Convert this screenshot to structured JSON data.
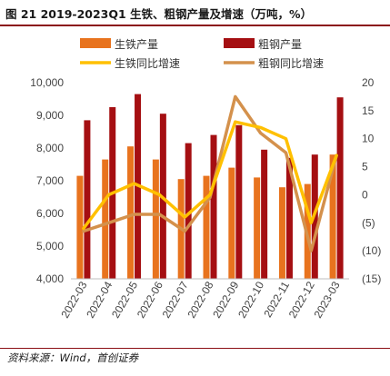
{
  "title": "图 21 2019-2023Q1 生铁、粗钢产量及增速（万吨，%）",
  "source": "资料来源：Wind，首创证券",
  "colors": {
    "pig_iron_bar": "#E8731E",
    "crude_steel_bar": "#A50F12",
    "pig_iron_line": "#FFC000",
    "crude_steel_line": "#D4914C",
    "negative_tick": "#C00000"
  },
  "chart_data": {
    "type": "bar+line",
    "categories": [
      "2022-03",
      "2022-04",
      "2022-05",
      "2022-06",
      "2022-07",
      "2022-08",
      "2022-09",
      "2022-10",
      "2022-11",
      "2022-12",
      "2023-03"
    ],
    "series": [
      {
        "name": "生铁产量",
        "type": "bar",
        "axis": "left",
        "values": [
          7150,
          7650,
          8050,
          7650,
          7050,
          7150,
          7400,
          7100,
          6800,
          6900,
          7800
        ]
      },
      {
        "name": "粗钢产量",
        "type": "bar",
        "axis": "left",
        "values": [
          8850,
          9250,
          9650,
          9050,
          8150,
          8400,
          8700,
          7950,
          7700,
          7800,
          9550
        ]
      },
      {
        "name": "生铁同比增速",
        "type": "line",
        "axis": "right",
        "values": [
          -6,
          0,
          2,
          0,
          -4,
          0,
          13,
          12,
          10,
          -5,
          7
        ]
      },
      {
        "name": "粗钢同比增速",
        "type": "line",
        "axis": "right",
        "values": [
          -6.5,
          -5,
          -3.5,
          -3.5,
          -6.5,
          -0.5,
          17.5,
          11,
          7.5,
          -10,
          7
        ]
      }
    ],
    "y_left": {
      "min": 4000,
      "max": 10000,
      "ticks": [
        "4,000",
        "5,000",
        "6,000",
        "7,000",
        "8,000",
        "9,000",
        "10,000"
      ]
    },
    "y_right": {
      "min": -15,
      "max": 20,
      "ticks": [
        "(15)",
        "(10)",
        "(5)",
        "0",
        "5",
        "10",
        "15",
        "20"
      ]
    },
    "legend": [
      "生铁产量",
      "粗钢产量",
      "生铁同比增速",
      "粗钢同比增速"
    ],
    "legend_position": "top",
    "grid": false
  }
}
